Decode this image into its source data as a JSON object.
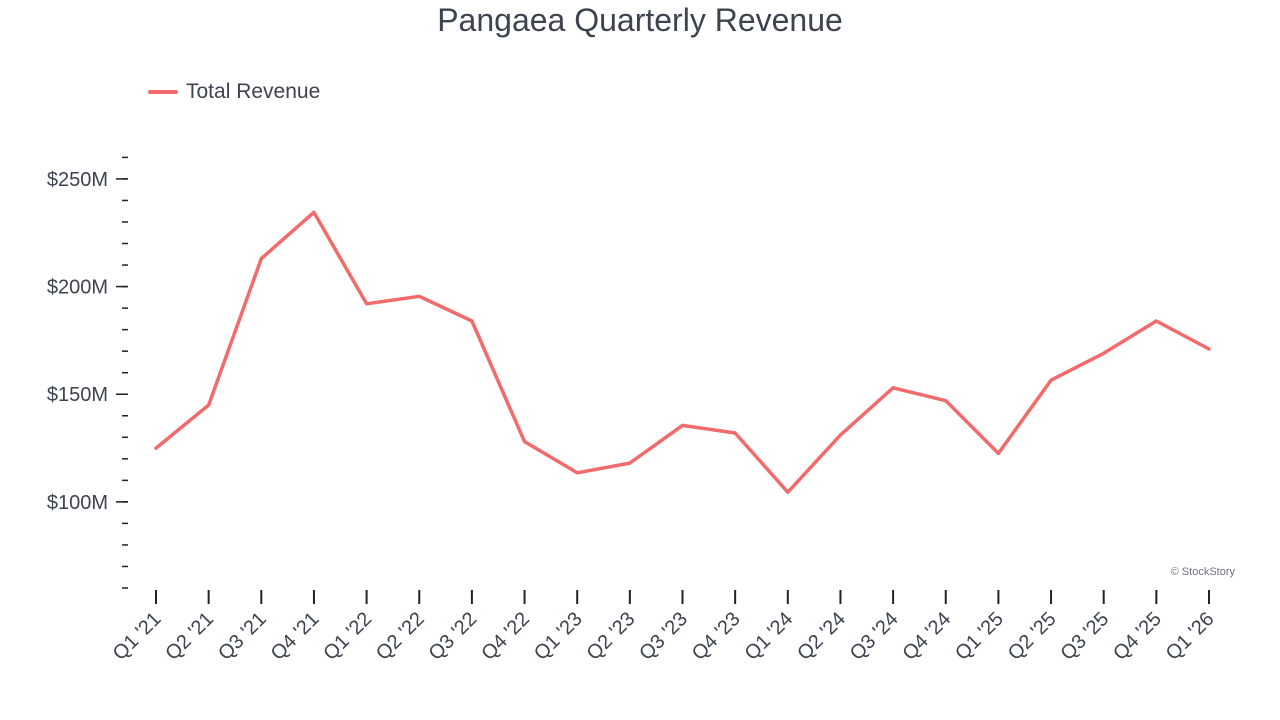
{
  "chart_data": {
    "type": "line",
    "title": "Pangaea Quarterly Revenue",
    "xlabel": "",
    "ylabel": "",
    "categories": [
      "Q1 '21",
      "Q2 '21",
      "Q3 '21",
      "Q4 '21",
      "Q1 '22",
      "Q2 '22",
      "Q3 '22",
      "Q4 '22",
      "Q1 '23",
      "Q2 '23",
      "Q3 '23",
      "Q4 '23",
      "Q1 '24",
      "Q2 '24",
      "Q3 '24",
      "Q4 '24",
      "Q1 '25",
      "Q2 '25",
      "Q3 '25",
      "Q4 '25",
      "Q1 '26"
    ],
    "series": [
      {
        "name": "Total Revenue",
        "color": "#f26b6b",
        "values": [
          125,
          145,
          213,
          234.5,
          192,
          195.5,
          184,
          128,
          113.5,
          118,
          135.5,
          132,
          104.5,
          131,
          153,
          147,
          122.5,
          156.5,
          169,
          184,
          171
        ]
      }
    ],
    "y_ticks": [
      {
        "value": 100,
        "label": "$100M"
      },
      {
        "value": 150,
        "label": "$150M"
      },
      {
        "value": 200,
        "label": "$200M"
      },
      {
        "value": 250,
        "label": "$250M"
      }
    ],
    "ylim": [
      60,
      270
    ],
    "grid": false,
    "legend_position": "top-left",
    "watermark": "© StockStory"
  }
}
